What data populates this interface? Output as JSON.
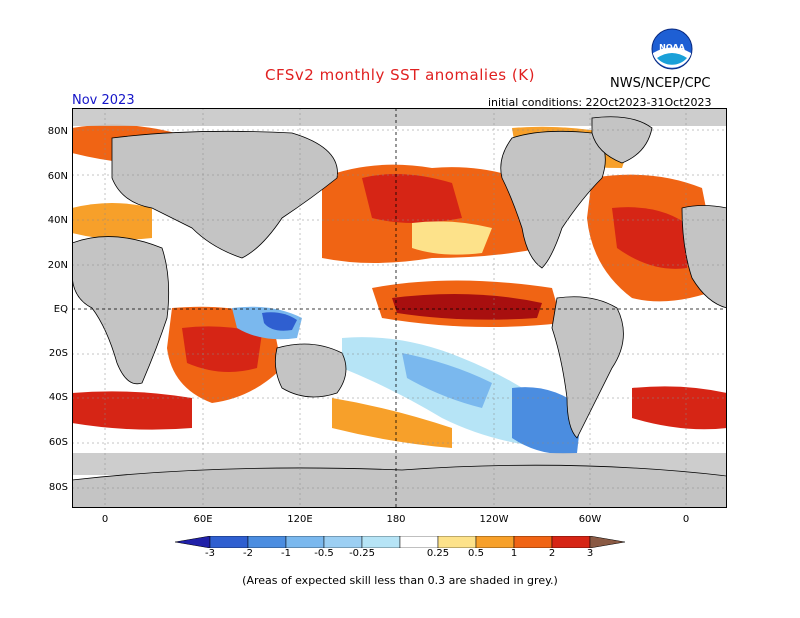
{
  "header": {
    "title": "CFSv2 monthly SST anomalies (K)",
    "org": "NWS/NCEP/CPC",
    "logo_text": "NOAA",
    "month": "Nov 2023",
    "initial_conditions": "initial conditions: 22Oct2023-31Oct2023"
  },
  "map": {
    "lat_labels": [
      "80N",
      "60N",
      "40N",
      "20N",
      "EQ",
      "20S",
      "40S",
      "60S",
      "80S"
    ],
    "lon_labels": [
      "0",
      "60E",
      "120E",
      "180",
      "120W",
      "60W",
      "0"
    ]
  },
  "colorbar": {
    "labels": [
      "-3",
      "-2",
      "-1",
      "-0.5",
      "-0.25",
      "0.25",
      "0.5",
      "1",
      "2",
      "3"
    ],
    "colors": [
      "#2020a8",
      "#2f5fd0",
      "#4b8de0",
      "#7ab8ee",
      "#b6e4f6",
      "#ffffff",
      "#fde28a",
      "#f7a02a",
      "#f06414",
      "#d62515",
      "#a80f0f",
      "#8a5a44"
    ]
  },
  "colors": {
    "land": "#c4c4c4",
    "ocean_neutral": "#ffffff",
    "title": "#e02020",
    "month": "#1515c8"
  },
  "footnote": "(Areas of expected skill less than 0.3 are shaded in grey.)"
}
